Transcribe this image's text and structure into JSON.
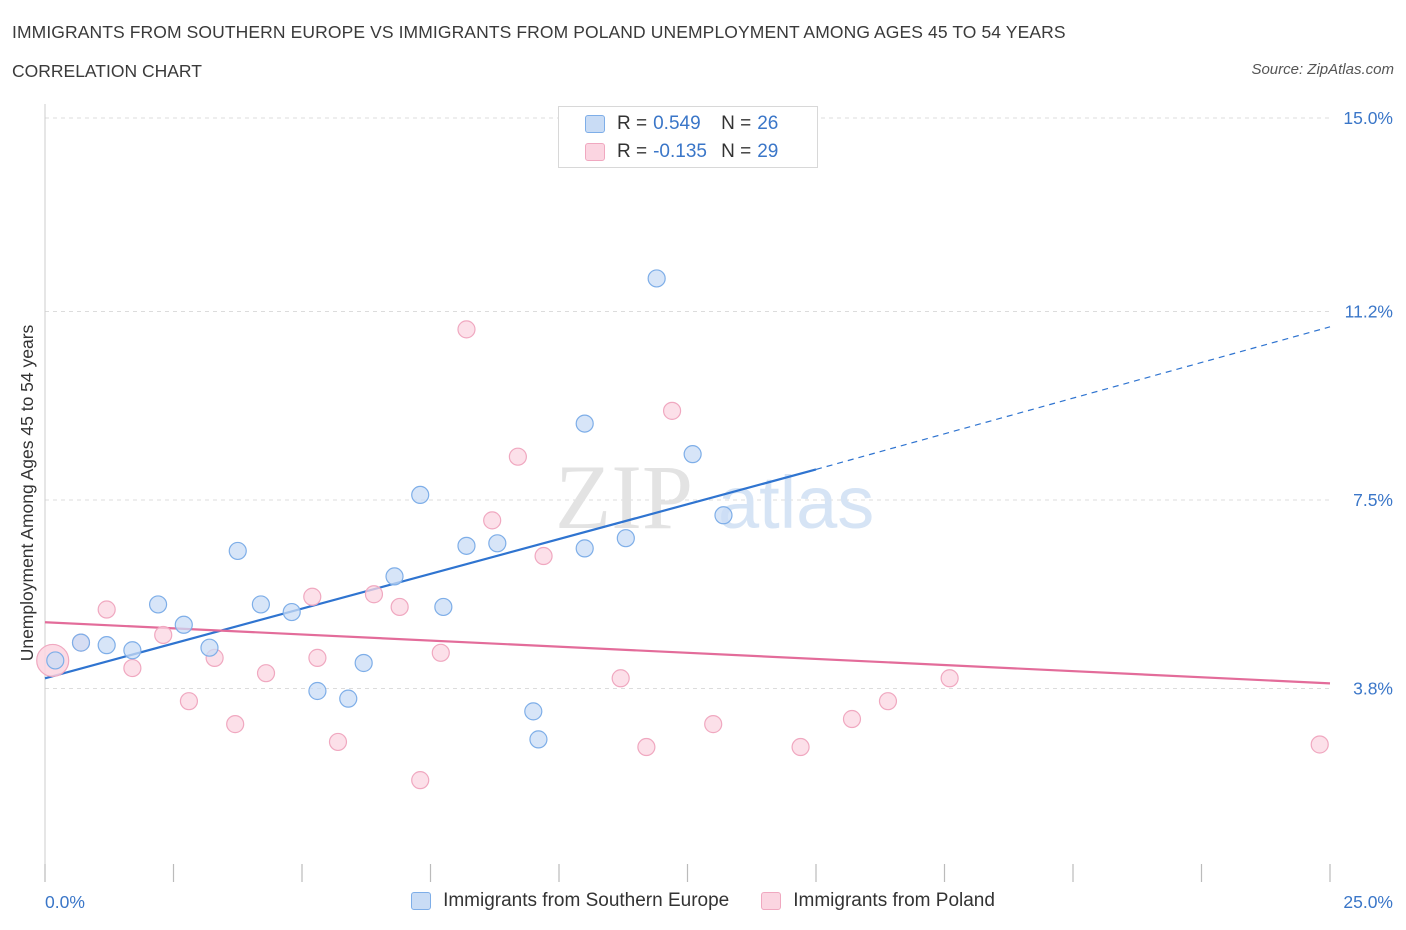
{
  "header": {
    "title": "IMMIGRANTS FROM SOUTHERN EUROPE VS IMMIGRANTS FROM POLAND UNEMPLOYMENT AMONG AGES 45 TO 54 YEARS",
    "subtitle": "CORRELATION CHART",
    "source": "Source: ZipAtlas.com"
  },
  "legend_top": [
    {
      "r_label": "R =",
      "r_value": "0.549",
      "n_label": "N =",
      "n_value": "26"
    },
    {
      "r_label": "R =",
      "r_value": "-0.135",
      "n_label": "N =",
      "n_value": "29"
    }
  ],
  "watermark": {
    "zip": "ZIP",
    "atlas": "atlas"
  },
  "chart_data": {
    "type": "scatter",
    "ylabel": "Unemployment Among Ages 45 to 54 years",
    "xlabel": "",
    "xlim": [
      0,
      25
    ],
    "ylim": [
      0,
      15
    ],
    "x_tick_labels": [
      "0.0%",
      "25.0%"
    ],
    "y_tick_labels": [
      "3.8%",
      "7.5%",
      "11.2%",
      "15.0%"
    ],
    "y_tick_values": [
      3.8,
      7.5,
      11.2,
      15.0
    ],
    "grid": true,
    "legend_position": "top-center",
    "series": [
      {
        "name": "Immigrants from Southern Europe",
        "color": "#7eaee8",
        "fill": "#c9dcf5",
        "trend_color": "#2f74d0",
        "trend": {
          "x0": 0,
          "y0": 4.0,
          "x1": 15,
          "y1": 8.1,
          "x_ext": 25,
          "y_ext": 10.9
        },
        "points": [
          [
            0.2,
            4.35
          ],
          [
            0.7,
            4.7
          ],
          [
            1.2,
            4.65
          ],
          [
            1.7,
            4.55
          ],
          [
            2.2,
            5.45
          ],
          [
            2.7,
            5.05
          ],
          [
            3.2,
            4.6
          ],
          [
            3.75,
            6.5
          ],
          [
            4.2,
            5.45
          ],
          [
            4.8,
            5.3
          ],
          [
            5.3,
            3.75
          ],
          [
            5.9,
            3.6
          ],
          [
            6.2,
            4.3
          ],
          [
            6.8,
            6.0
          ],
          [
            7.3,
            7.6
          ],
          [
            7.75,
            5.4
          ],
          [
            8.2,
            6.6
          ],
          [
            8.8,
            6.65
          ],
          [
            9.5,
            3.35
          ],
          [
            9.6,
            2.8
          ],
          [
            10.5,
            9.0
          ],
          [
            10.5,
            6.55
          ],
          [
            11.3,
            6.75
          ],
          [
            11.9,
            11.85
          ],
          [
            12.6,
            8.4
          ],
          [
            13.2,
            7.2
          ]
        ]
      },
      {
        "name": "Immigrants from Poland",
        "color": "#f0a8c0",
        "fill": "#fbd5e1",
        "trend_color": "#e36c9a",
        "trend": {
          "x0": 0,
          "y0": 5.1,
          "x1": 25,
          "y1": 3.9
        },
        "points": [
          [
            0.7,
            4.7
          ],
          [
            1.2,
            5.35
          ],
          [
            1.7,
            4.2
          ],
          [
            2.3,
            4.85
          ],
          [
            2.8,
            3.55
          ],
          [
            3.3,
            4.4
          ],
          [
            3.7,
            3.1
          ],
          [
            4.3,
            4.1
          ],
          [
            5.2,
            5.6
          ],
          [
            5.3,
            4.4
          ],
          [
            5.7,
            2.75
          ],
          [
            6.4,
            5.65
          ],
          [
            6.9,
            5.4
          ],
          [
            7.3,
            2.0
          ],
          [
            7.7,
            4.5
          ],
          [
            8.2,
            10.85
          ],
          [
            8.7,
            7.1
          ],
          [
            9.2,
            8.35
          ],
          [
            9.7,
            6.4
          ],
          [
            11.2,
            4.0
          ],
          [
            11.7,
            2.65
          ],
          [
            12.2,
            9.25
          ],
          [
            13.0,
            3.1
          ],
          [
            14.7,
            2.65
          ],
          [
            15.7,
            3.2
          ],
          [
            16.4,
            3.55
          ],
          [
            17.6,
            4.0
          ],
          [
            24.8,
            2.7
          ],
          [
            0.15,
            4.35
          ]
        ]
      }
    ]
  }
}
